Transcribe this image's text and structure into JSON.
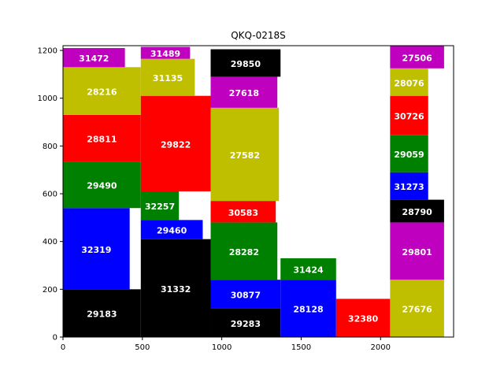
{
  "chart_data": {
    "type": "bar",
    "title": "QKQ-0218S",
    "xlabel": "",
    "ylabel": "",
    "xlim": [
      0,
      2460
    ],
    "ylim": [
      0,
      1220
    ],
    "xticks": [
      0,
      500,
      1000,
      1500,
      2000
    ],
    "yticks": [
      0,
      200,
      400,
      600,
      800,
      1000,
      1200
    ],
    "grid": false,
    "blocks": [
      {
        "label": "29183",
        "x0": 0,
        "x1": 490,
        "y0": 0,
        "y1": 200,
        "color": "#000000"
      },
      {
        "label": "32319",
        "x0": 0,
        "x1": 420,
        "y0": 200,
        "y1": 540,
        "color": "#0000ff"
      },
      {
        "label": "29490",
        "x0": 0,
        "x1": 490,
        "y0": 540,
        "y1": 735,
        "color": "#008000"
      },
      {
        "label": "28811",
        "x0": 0,
        "x1": 490,
        "y0": 735,
        "y1": 930,
        "color": "#ff0000"
      },
      {
        "label": "28216",
        "x0": 0,
        "x1": 490,
        "y0": 930,
        "y1": 1130,
        "color": "#bfbf00"
      },
      {
        "label": "31472",
        "x0": 0,
        "x1": 390,
        "y0": 1130,
        "y1": 1210,
        "color": "#bf00bf"
      },
      {
        "label": "31332",
        "x0": 490,
        "x1": 930,
        "y0": 0,
        "y1": 410,
        "color": "#000000"
      },
      {
        "label": "29460",
        "x0": 490,
        "x1": 880,
        "y0": 410,
        "y1": 490,
        "color": "#0000ff"
      },
      {
        "label": "32257",
        "x0": 490,
        "x1": 730,
        "y0": 490,
        "y1": 610,
        "color": "#008000"
      },
      {
        "label": "29822",
        "x0": 490,
        "x1": 930,
        "y0": 610,
        "y1": 1010,
        "color": "#ff0000"
      },
      {
        "label": "31135",
        "x0": 490,
        "x1": 830,
        "y0": 1010,
        "y1": 1165,
        "color": "#bfbf00"
      },
      {
        "label": "31489",
        "x0": 490,
        "x1": 800,
        "y0": 1165,
        "y1": 1215,
        "color": "#bf00bf"
      },
      {
        "label": "29283",
        "x0": 930,
        "x1": 1370,
        "y0": 0,
        "y1": 120,
        "color": "#000000"
      },
      {
        "label": "30877",
        "x0": 930,
        "x1": 1370,
        "y0": 120,
        "y1": 240,
        "color": "#0000ff"
      },
      {
        "label": "28282",
        "x0": 930,
        "x1": 1350,
        "y0": 240,
        "y1": 480,
        "color": "#008000"
      },
      {
        "label": "30583",
        "x0": 930,
        "x1": 1340,
        "y0": 480,
        "y1": 570,
        "color": "#ff0000"
      },
      {
        "label": "27582",
        "x0": 930,
        "x1": 1360,
        "y0": 570,
        "y1": 960,
        "color": "#bfbf00"
      },
      {
        "label": "27618",
        "x0": 930,
        "x1": 1350,
        "y0": 960,
        "y1": 1090,
        "color": "#bf00bf"
      },
      {
        "label": "29850",
        "x0": 930,
        "x1": 1370,
        "y0": 1090,
        "y1": 1205,
        "color": "#000000"
      },
      {
        "label": "28128",
        "x0": 1370,
        "x1": 1720,
        "y0": 0,
        "y1": 240,
        "color": "#0000ff"
      },
      {
        "label": "31424",
        "x0": 1370,
        "x1": 1720,
        "y0": 240,
        "y1": 330,
        "color": "#008000"
      },
      {
        "label": "32380",
        "x0": 1720,
        "x1": 2060,
        "y0": 0,
        "y1": 160,
        "color": "#ff0000"
      },
      {
        "label": "27676",
        "x0": 2060,
        "x1": 2400,
        "y0": 0,
        "y1": 240,
        "color": "#bfbf00"
      },
      {
        "label": "29801",
        "x0": 2060,
        "x1": 2400,
        "y0": 240,
        "y1": 480,
        "color": "#bf00bf"
      },
      {
        "label": "28790",
        "x0": 2060,
        "x1": 2400,
        "y0": 480,
        "y1": 575,
        "color": "#000000"
      },
      {
        "label": "31273",
        "x0": 2060,
        "x1": 2300,
        "y0": 575,
        "y1": 690,
        "color": "#0000ff"
      },
      {
        "label": "29059",
        "x0": 2060,
        "x1": 2300,
        "y0": 690,
        "y1": 845,
        "color": "#008000"
      },
      {
        "label": "30726",
        "x0": 2060,
        "x1": 2300,
        "y0": 845,
        "y1": 1010,
        "color": "#ff0000"
      },
      {
        "label": "28076",
        "x0": 2060,
        "x1": 2300,
        "y0": 1010,
        "y1": 1125,
        "color": "#bfbf00"
      },
      {
        "label": "27506",
        "x0": 2060,
        "x1": 2400,
        "y0": 1125,
        "y1": 1220,
        "color": "#bf00bf"
      }
    ]
  }
}
